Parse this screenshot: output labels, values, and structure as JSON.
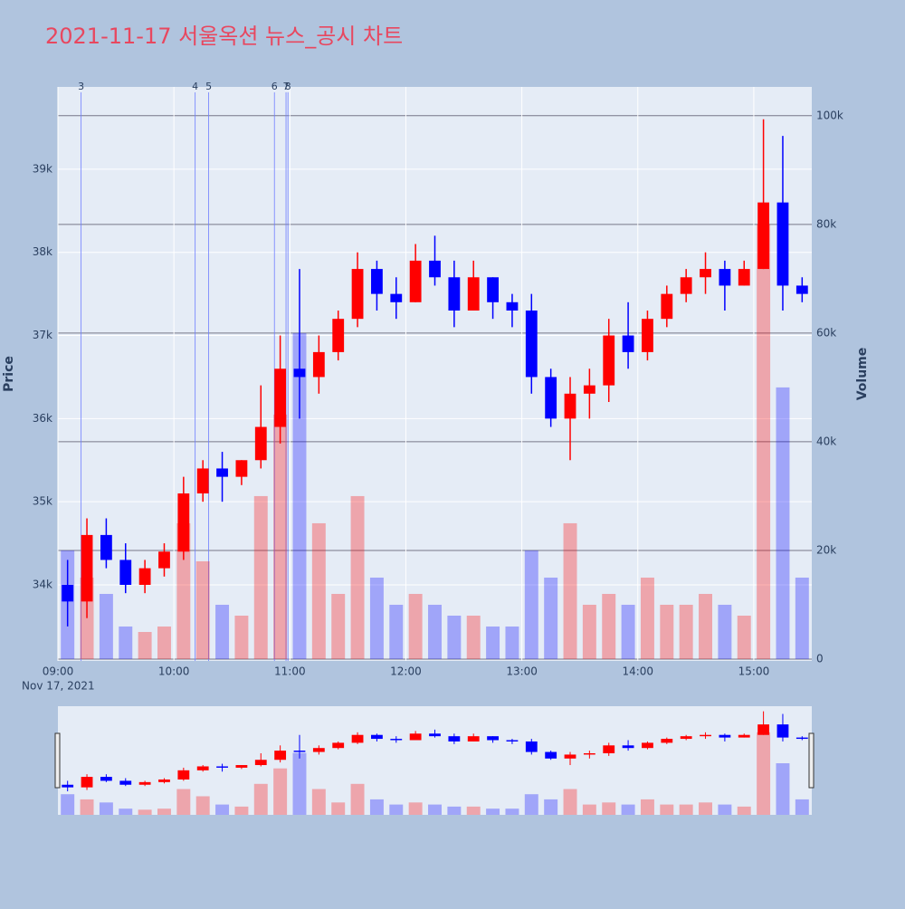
{
  "chart_data": {
    "type": "candlestick",
    "title": "2021-11-17 서울옥션 뉴스_공시 차트",
    "y_title": "Price",
    "y2_title": "Volume",
    "date_label": "Nov 17, 2021",
    "x": [
      "09:00",
      "09:10",
      "09:20",
      "09:30",
      "09:40",
      "09:50",
      "10:00",
      "10:10",
      "10:20",
      "10:30",
      "10:40",
      "10:50",
      "11:00",
      "11:10",
      "11:20",
      "11:30",
      "11:40",
      "11:50",
      "12:00",
      "12:10",
      "12:20",
      "12:30",
      "12:40",
      "12:50",
      "13:00",
      "13:10",
      "13:20",
      "13:30",
      "13:40",
      "13:50",
      "14:00",
      "14:10",
      "14:20",
      "14:30",
      "14:40",
      "14:50",
      "15:00",
      "15:10",
      "15:20"
    ],
    "open": [
      34000,
      33800,
      34600,
      34300,
      34000,
      34200,
      34400,
      35100,
      35400,
      35300,
      35500,
      35900,
      36600,
      36500,
      36800,
      37200,
      37800,
      37500,
      37400,
      37900,
      37700,
      37300,
      37700,
      37400,
      37300,
      36500,
      36000,
      36300,
      36400,
      37000,
      36800,
      37200,
      37500,
      37700,
      37800,
      37600,
      37800,
      38600,
      37600
    ],
    "high": [
      34300,
      34800,
      34800,
      34500,
      34300,
      34500,
      35300,
      35500,
      35600,
      35500,
      36400,
      37000,
      37800,
      37000,
      37300,
      38000,
      37900,
      37700,
      38100,
      38200,
      37900,
      37900,
      37700,
      37500,
      37500,
      36600,
      36500,
      36600,
      37200,
      37400,
      37300,
      37600,
      37800,
      38000,
      37900,
      37900,
      39600,
      39400,
      37700
    ],
    "low": [
      33500,
      33600,
      34200,
      33900,
      33900,
      34100,
      34300,
      35000,
      35000,
      35200,
      35400,
      35700,
      36000,
      36300,
      36700,
      37100,
      37300,
      37200,
      37400,
      37600,
      37100,
      37300,
      37200,
      37100,
      36300,
      35900,
      35500,
      36000,
      36200,
      36600,
      36700,
      37100,
      37400,
      37500,
      37300,
      37600,
      37800,
      37300,
      37400
    ],
    "close": [
      33800,
      34600,
      34300,
      34000,
      34200,
      34400,
      35100,
      35400,
      35300,
      35500,
      35900,
      36600,
      36500,
      36800,
      37200,
      37800,
      37500,
      37400,
      37900,
      37700,
      37300,
      37700,
      37400,
      37300,
      36500,
      36000,
      36300,
      36400,
      37000,
      36800,
      37200,
      37500,
      37700,
      37800,
      37600,
      37800,
      38600,
      37600,
      37500
    ],
    "volume": [
      20000,
      15000,
      12000,
      6000,
      5000,
      6000,
      25000,
      18000,
      10000,
      8000,
      30000,
      45000,
      60000,
      25000,
      12000,
      30000,
      15000,
      10000,
      12000,
      10000,
      8000,
      8000,
      6000,
      6000,
      20000,
      15000,
      25000,
      10000,
      12000,
      10000,
      15000,
      10000,
      10000,
      12000,
      10000,
      8000,
      80000,
      50000,
      15000
    ],
    "up_color": "#ff0000",
    "down_color": "#0000ff",
    "xlim": [
      "09:00",
      "15:30"
    ],
    "xticks": [
      "09:00",
      "10:00",
      "11:00",
      "12:00",
      "13:00",
      "14:00",
      "15:00"
    ],
    "ylim": [
      33085,
      39990
    ],
    "yticks": [
      {
        "value": 34000,
        "label": "34k"
      },
      {
        "value": 35000,
        "label": "35k"
      },
      {
        "value": 36000,
        "label": "36k"
      },
      {
        "value": 37000,
        "label": "37k"
      },
      {
        "value": 38000,
        "label": "38k"
      },
      {
        "value": 39000,
        "label": "39k"
      }
    ],
    "y2lim": [
      0,
      105300
    ],
    "y2ticks": [
      0,
      {
        "value": 20000,
        "label": "20k"
      },
      {
        "value": 40000,
        "label": "40k"
      },
      {
        "value": 60000,
        "label": "60k"
      },
      {
        "value": 80000,
        "label": "80k"
      },
      {
        "value": 100000,
        "label": "100k"
      }
    ],
    "news_markers": [
      {
        "x": "09:12",
        "label": "3"
      },
      {
        "x": "10:11",
        "label": "4"
      },
      {
        "x": "10:18",
        "label": "5"
      },
      {
        "x": "10:52",
        "label": "6"
      },
      {
        "x": "10:58",
        "label": "7"
      },
      {
        "x": "10:59",
        "label": "8"
      }
    ],
    "grid": true
  }
}
